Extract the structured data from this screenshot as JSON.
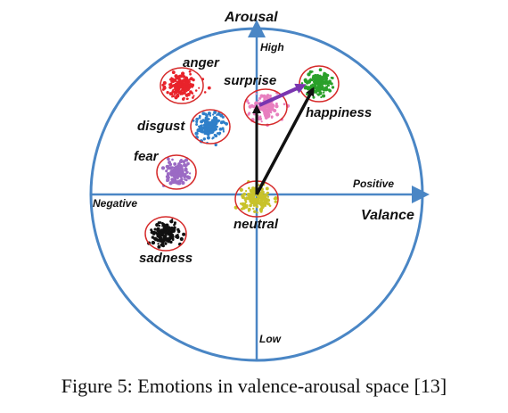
{
  "axes": {
    "y_title": "Arousal",
    "x_title": "Valance",
    "y_high": "High",
    "y_low": "Low",
    "x_positive": "Positive",
    "x_negative": "Negative"
  },
  "colors": {
    "axis": "#4a86c5",
    "ring": "#d62a2a",
    "arrow_black": "#111111",
    "arrow_purple": "#7a35b0"
  },
  "emotions": [
    {
      "key": "anger",
      "label": "anger",
      "color": "#e8232b"
    },
    {
      "key": "surprise",
      "label": "surprise",
      "color": "#e87fbf"
    },
    {
      "key": "happiness",
      "label": "happiness",
      "color": "#2aa02a"
    },
    {
      "key": "disgust",
      "label": "disgust",
      "color": "#2f7fc9"
    },
    {
      "key": "fear",
      "label": "fear",
      "color": "#9b6ac4"
    },
    {
      "key": "neutral",
      "label": "neutral",
      "color": "#c8c22a"
    },
    {
      "key": "sadness",
      "label": "sadness",
      "color": "#111111"
    }
  ],
  "caption": "Figure 5: Emotions in valence-arousal space [13]"
}
